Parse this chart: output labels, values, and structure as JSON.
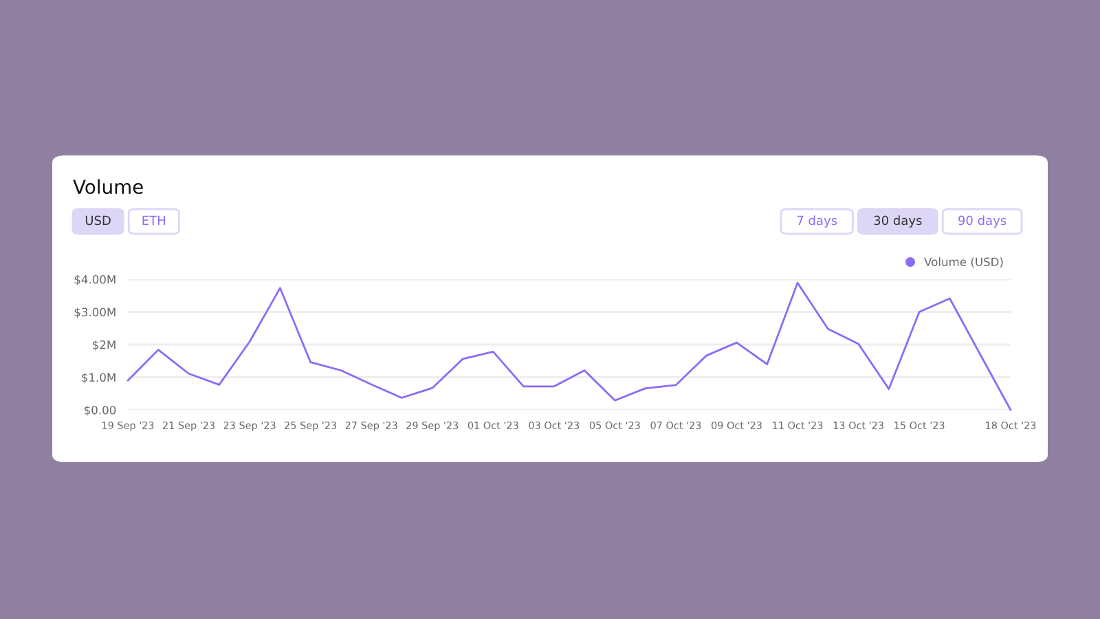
{
  "chart_data": {
    "type": "line",
    "title": "Volume",
    "annotations": [
      "USD",
      "ETH",
      "7 days",
      "30 days",
      "90 days"
    ],
    "x": [
      "2023-09-19",
      "2023-09-20",
      "2023-09-21",
      "2023-09-22",
      "2023-09-23",
      "2023-09-24",
      "2023-09-25",
      "2023-09-26",
      "2023-09-27",
      "2023-09-28",
      "2023-09-29",
      "2023-09-30",
      "2023-10-01",
      "2023-10-02",
      "2023-10-03",
      "2023-10-04",
      "2023-10-05",
      "2023-10-06",
      "2023-10-07",
      "2023-10-08",
      "2023-10-09",
      "2023-10-10",
      "2023-10-11",
      "2023-10-12",
      "2023-10-13",
      "2023-10-14",
      "2023-10-15",
      "2023-10-16",
      "2023-10-17",
      "2023-10-18"
    ],
    "series": [
      {
        "name": "Volume (USD)",
        "color": "#8b6cf6",
        "values": [
          0.9,
          1.84,
          1.11,
          0.77,
          2.09,
          3.73,
          1.46,
          1.21,
          0.78,
          0.37,
          0.67,
          1.56,
          1.78,
          0.72,
          0.72,
          1.21,
          0.29,
          0.66,
          0.76,
          1.66,
          2.06,
          1.4,
          3.89,
          2.48,
          2.02,
          0.64,
          3.0,
          3.41,
          1.7,
          0.0
        ]
      }
    ],
    "xlim": [
      "2023-09-19",
      "2023-10-18"
    ],
    "xticks": [
      {
        "value": "2023-09-19",
        "label": "19 Sep '23"
      },
      {
        "value": "2023-09-21",
        "label": "21 Sep '23"
      },
      {
        "value": "2023-09-23",
        "label": "23 Sep '23"
      },
      {
        "value": "2023-09-25",
        "label": "25 Sep '23"
      },
      {
        "value": "2023-09-27",
        "label": "27 Sep '23"
      },
      {
        "value": "2023-09-29",
        "label": "29 Sep '23"
      },
      {
        "value": "2023-10-01",
        "label": "01 Oct '23"
      },
      {
        "value": "2023-10-03",
        "label": "03 Oct '23"
      },
      {
        "value": "2023-10-05",
        "label": "05 Oct '23"
      },
      {
        "value": "2023-10-07",
        "label": "07 Oct '23"
      },
      {
        "value": "2023-10-09",
        "label": "09 Oct '23"
      },
      {
        "value": "2023-10-11",
        "label": "11 Oct '23"
      },
      {
        "value": "2023-10-13",
        "label": "13 Oct '23"
      },
      {
        "value": "2023-10-15",
        "label": "15 Oct '23"
      },
      {
        "value": "2023-10-18",
        "label": "18 Oct '23"
      }
    ],
    "ylim": [
      0,
      4
    ],
    "yticks": [
      {
        "value": 0,
        "label": "$0.00"
      },
      {
        "value": 1,
        "label": "$1.0M"
      },
      {
        "value": 2,
        "label": "$2M"
      },
      {
        "value": 3,
        "label": "$3.00M"
      },
      {
        "value": 4,
        "label": "$4.00M"
      }
    ],
    "grid": "y",
    "legend": "top right",
    "marker": "none",
    "line_style": "solid"
  }
}
